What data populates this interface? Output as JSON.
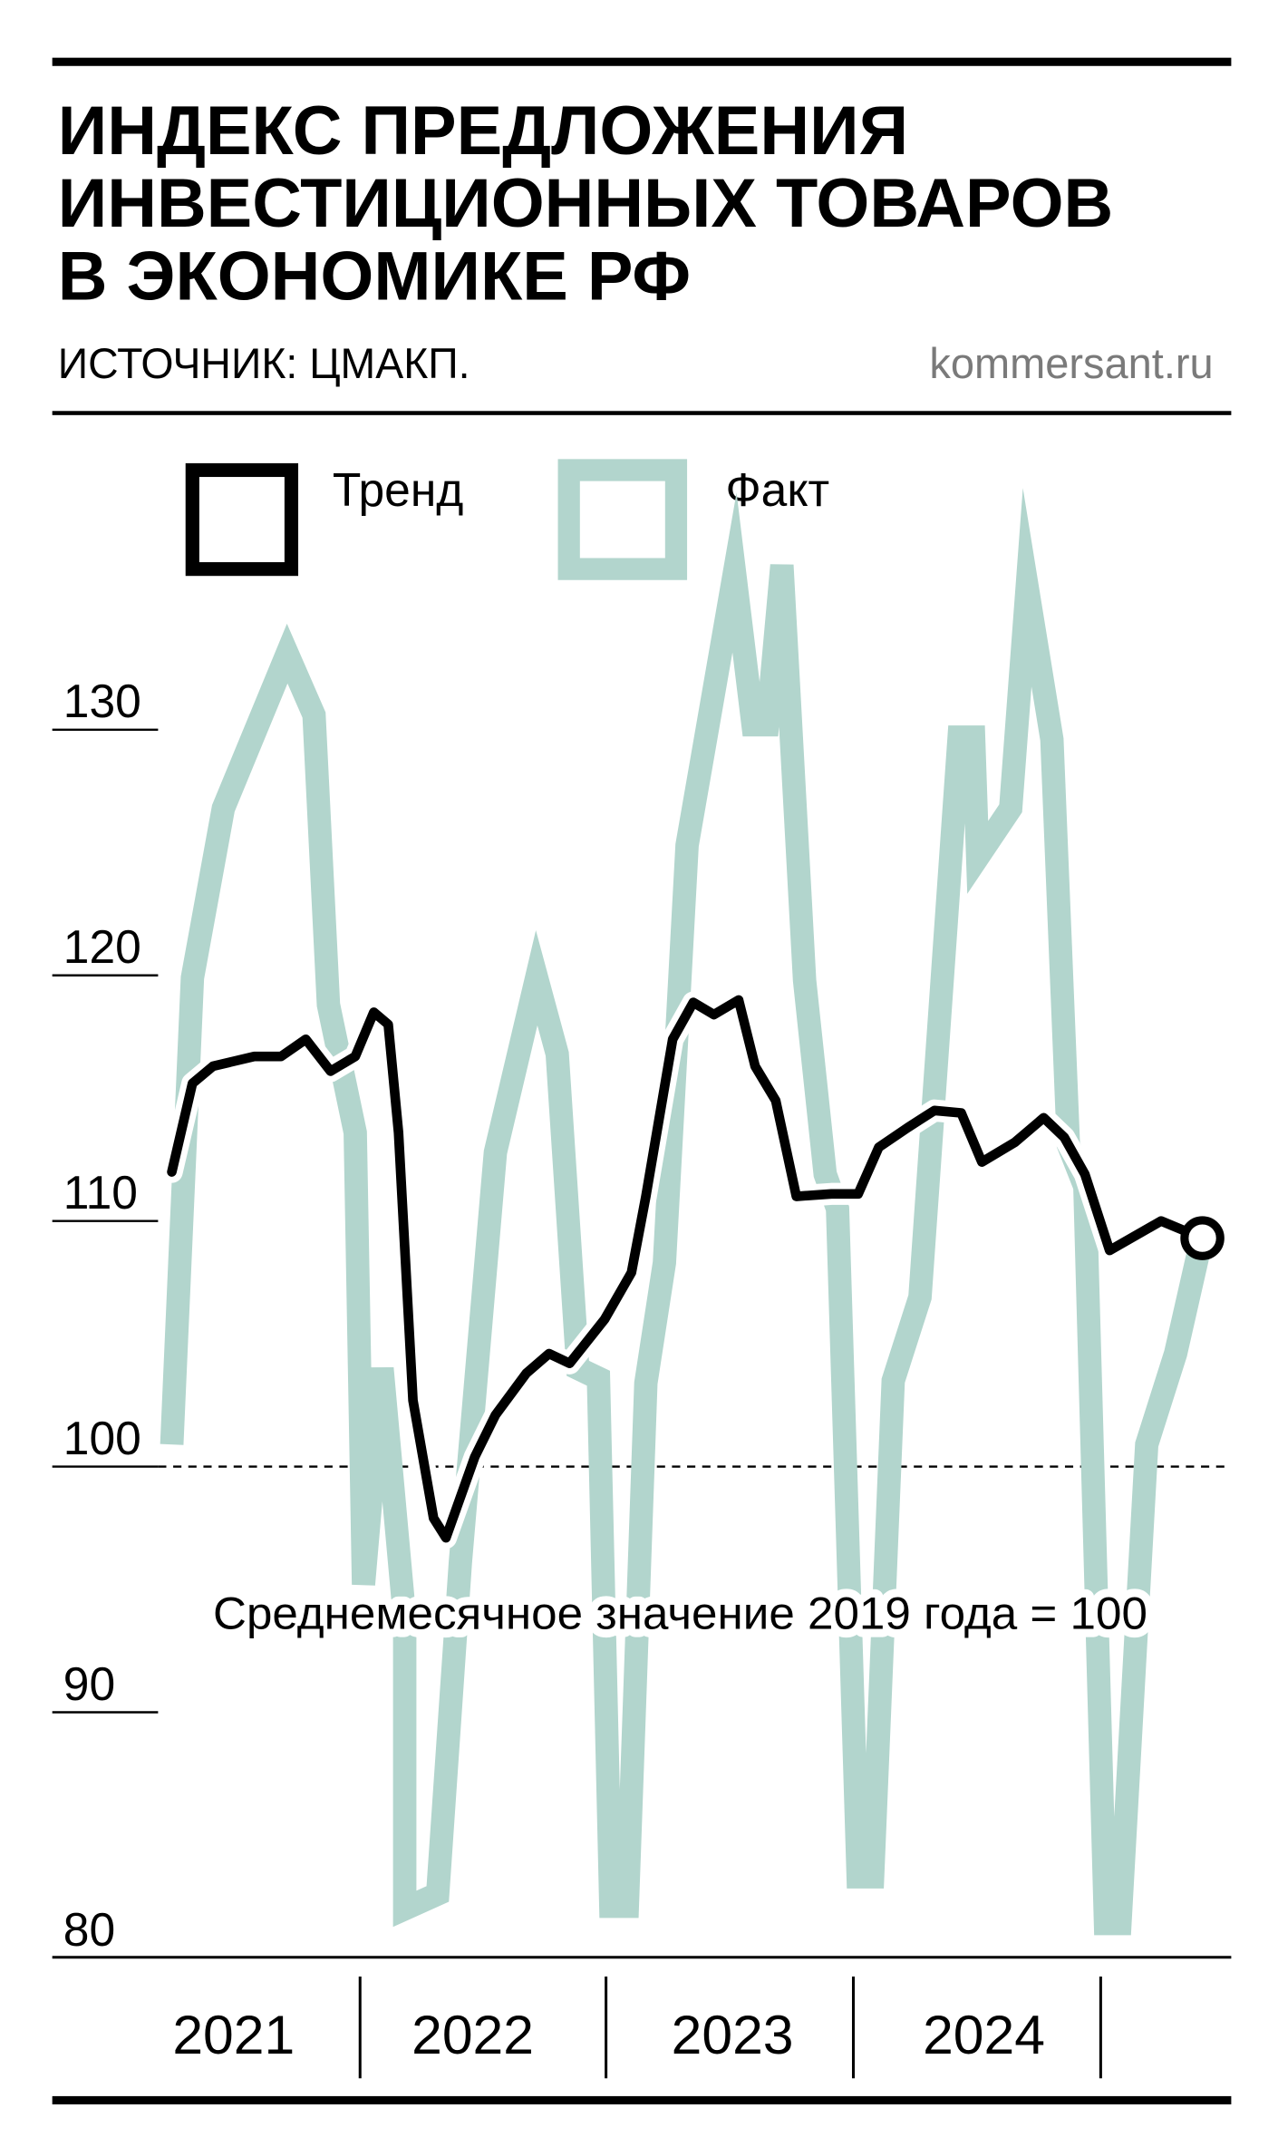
{
  "header": {
    "title_lines": [
      "ИНДЕКС ПРЕДЛОЖЕНИЯ",
      "ИНВЕСТИЦИОННЫХ ТОВАРОВ",
      "В ЭКОНОМИКЕ РФ"
    ],
    "source": "ИСТОЧНИК: ЦМАКП.",
    "brand": "kommersant.ru"
  },
  "legend": {
    "items": [
      {
        "label": "Тренд",
        "color": "#000000"
      },
      {
        "label": "Факт",
        "color": "#b2d5cd"
      }
    ]
  },
  "annotation": "Среднемесячное значение 2019 года = 100",
  "colors": {
    "trend": "#000000",
    "fact": "#b2d5cd",
    "brand": "#7a7a7a"
  },
  "chart_data": {
    "type": "line",
    "title": "Индекс предложения инвестиционных товаров в экономике РФ",
    "subtitle": "Источник: ЦМАКП.",
    "xlabel": "",
    "ylabel": "",
    "ylim": [
      80,
      135
    ],
    "yticks": [
      80,
      90,
      100,
      110,
      120,
      130
    ],
    "x_categories": [
      "2021",
      "2022",
      "2023",
      "2024"
    ],
    "reference_line": {
      "value": 100,
      "label": "Среднемесячное значение 2019 года = 100",
      "style": "dashed"
    },
    "grid": false,
    "legend_position": "top-left",
    "series": [
      {
        "name": "Факт",
        "x": [
          0,
          1,
          2.5,
          5.6,
          6.9,
          7.6,
          8.9,
          9.3,
          10.2,
          11.3,
          11.3,
          12.9,
          14,
          15.7,
          17.7,
          18.7,
          19.7,
          20.7,
          21.3,
          22.1,
          23,
          23.9,
          25,
          27.3,
          28.2,
          28.9,
          29.6,
          30.7,
          31.7,
          32.3,
          33.3,
          34,
          35,
          36.3,
          38.2,
          38.9,
          39.1,
          40.7,
          41.5,
          42.7,
          43.5,
          44.3,
          45.3,
          46,
          47.3,
          48.7,
          50
        ],
        "values": [
          100.9,
          119.9,
          126.8,
          133.1,
          130.6,
          118.8,
          113.6,
          95.2,
          104,
          93.8,
          82,
          82.6,
          96.1,
          112.8,
          119.9,
          116.8,
          104,
          103.6,
          82.1,
          82.1,
          103.4,
          108.3,
          125.3,
          136.4,
          130.2,
          130.2,
          136.7,
          119.8,
          111.9,
          110.5,
          83.3,
          83.3,
          103.5,
          106.9,
          129.7,
          129.7,
          124.8,
          126.8,
          135.8,
          129.6,
          113.1,
          111.4,
          81.4,
          81.4,
          100.9,
          104.6,
          109.4
        ]
      },
      {
        "name": "Тренд",
        "x": [
          0,
          1,
          2,
          4,
          5.3,
          6.5,
          7.7,
          8.9,
          9.8,
          10.5,
          11,
          11.7,
          12.7,
          13.3,
          14.7,
          15.7,
          17.2,
          18.3,
          19.3,
          21,
          22.3,
          23,
          24.3,
          25.3,
          26.3,
          27.5,
          28.3,
          29.3,
          30.3,
          32,
          33.3,
          34.3,
          35.7,
          37,
          38.3,
          39.3,
          40.9,
          42.3,
          43.3,
          44.3,
          45.5,
          48,
          50
        ],
        "values": [
          112,
          115.6,
          116.3,
          116.7,
          116.7,
          117.4,
          116.1,
          116.7,
          118.5,
          118,
          113.6,
          102.7,
          97.9,
          97.1,
          100.4,
          102.1,
          103.8,
          104.6,
          104.2,
          106,
          107.9,
          111,
          117.4,
          118.9,
          118.4,
          119,
          116.3,
          114.9,
          111,
          111.1,
          111.1,
          113,
          113.8,
          114.5,
          114.4,
          112.4,
          113.2,
          114.2,
          113.4,
          111.9,
          108.8,
          110,
          109.3
        ]
      }
    ]
  }
}
